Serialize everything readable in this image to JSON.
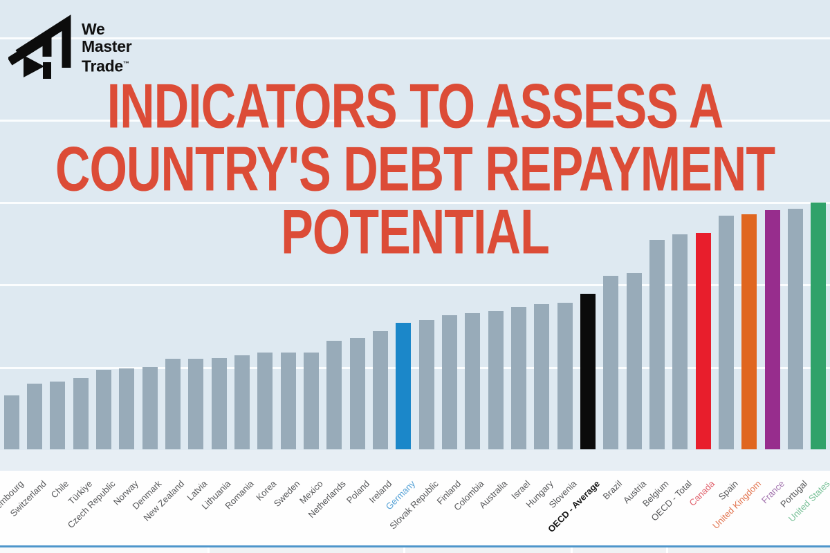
{
  "brand": {
    "line1": "We",
    "line2": "Master",
    "line3": "Trade",
    "tm": "™"
  },
  "title": {
    "line1": "INDICATORS TO ASSESS A",
    "line2": "COUNTRY'S DEBT REPAYMENT",
    "line3": "POTENTIAL",
    "color": "#dc4c37"
  },
  "chart_data": {
    "type": "bar",
    "title": "",
    "xlabel": "",
    "ylabel": "",
    "y_axis_note": "no visible y-axis labels; values estimated in white-gridline units (5 gridlines, equal spacing)",
    "ylim": [
      0,
      5
    ],
    "grid": "horizontal white gridlines on light blue panel",
    "legend": "none",
    "categories": [
      "Luxembourg",
      "Switzerland",
      "Chile",
      "Türkiye",
      "Czech Republic",
      "Norway",
      "Denmark",
      "New Zealand",
      "Latvia",
      "Lithuania",
      "Romania",
      "Korea",
      "Sweden",
      "Mexico",
      "Netherlands",
      "Poland",
      "Ireland",
      "Germany",
      "Slovak Republic",
      "Finland",
      "Colombia",
      "Australia",
      "Israel",
      "Hungary",
      "Slovenia",
      "OECD - Average",
      "Brazil",
      "Austria",
      "Belgium",
      "OECD - Total",
      "Canada",
      "Spain",
      "United Kingdom",
      "France",
      "Portugal",
      "United States"
    ],
    "values": [
      0.65,
      0.8,
      0.82,
      0.86,
      0.96,
      0.98,
      1.0,
      1.1,
      1.1,
      1.11,
      1.14,
      1.17,
      1.17,
      1.17,
      1.32,
      1.35,
      1.43,
      1.53,
      1.57,
      1.63,
      1.65,
      1.68,
      1.73,
      1.76,
      1.78,
      1.89,
      2.1,
      2.14,
      2.54,
      2.61,
      2.62,
      2.83,
      2.85,
      2.9,
      2.92,
      2.99
    ],
    "bar_colors": {
      "default": "#98abb9",
      "Germany": "#1b87c9",
      "OECD - Average": "#0b0b0b",
      "Canada": "#e81e2c",
      "United Kingdom": "#e0661f",
      "France": "#972d8d",
      "United States": "#30a26a"
    },
    "label_colors": {
      "default": "#57585a",
      "Germany": "#54a1d6",
      "OECD - Average": "#141414",
      "Canada": "#e0606b",
      "United Kingdom": "#e2734e",
      "France": "#a273ae",
      "United States": "#74bf94"
    },
    "bold_label": "OECD - Average"
  },
  "colors": {
    "page_background": "#dee9f1",
    "gridline": "#ffffff",
    "table_border_blue": "#4e96cb",
    "logo_black": "#0c0c0c"
  }
}
